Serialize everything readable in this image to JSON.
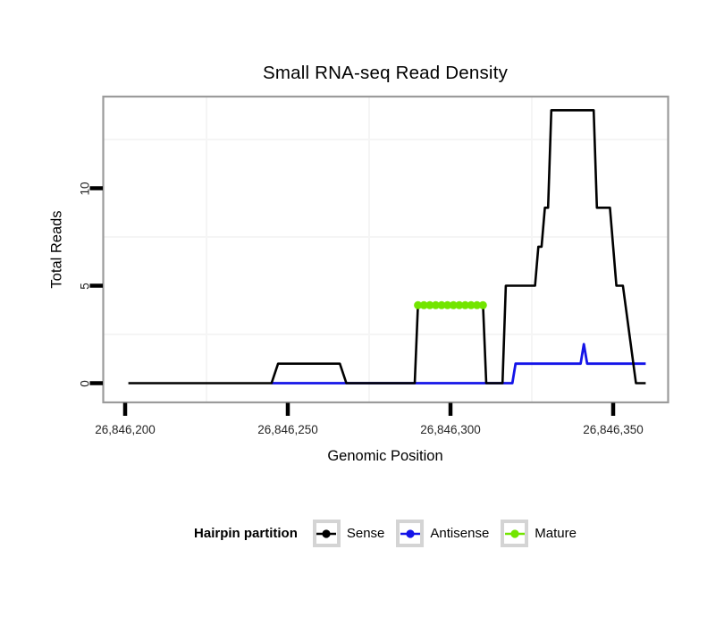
{
  "title": "Small RNA-seq Read Density",
  "axes": {
    "x": {
      "label": "Genomic Position",
      "ticks": [
        {
          "value": 26846200,
          "label": "26,846,200"
        },
        {
          "value": 26846250,
          "label": "26,846,250"
        },
        {
          "value": 26846300,
          "label": "26,846,300"
        },
        {
          "value": 26846350,
          "label": "26,846,350"
        }
      ]
    },
    "y": {
      "label": "Total Reads",
      "ticks": [
        {
          "value": 0,
          "label": "0"
        },
        {
          "value": 5,
          "label": "5"
        },
        {
          "value": 10,
          "label": "10"
        }
      ]
    }
  },
  "legend": {
    "title": "Hairpin partition",
    "items": [
      {
        "label": "Sense",
        "color": "#000000"
      },
      {
        "label": "Antisense",
        "color": "#1414E8"
      },
      {
        "label": "Mature",
        "color": "#72E500"
      }
    ]
  },
  "colors": {
    "panel_border": "#9B9B9B",
    "minor_grid": "#F5F5F5",
    "tick": "#000000"
  },
  "chart_data": {
    "type": "line",
    "title": "Small RNA-seq Read Density",
    "xlabel": "Genomic Position",
    "ylabel": "Total Reads",
    "xlim": [
      26846193,
      26846367
    ],
    "ylim": [
      0,
      14.7
    ],
    "x_ticks": [
      26846200,
      26846250,
      26846300,
      26846350
    ],
    "x_minor": [
      26846225,
      26846275,
      26846325
    ],
    "y_ticks": [
      0,
      5,
      10
    ],
    "y_minor": [
      2.5,
      7.5,
      12.5
    ],
    "grid": "very light minor gridlines only",
    "legend_position": "bottom",
    "series": [
      {
        "name": "Sense",
        "color": "#000000",
        "style": "line",
        "width": 2.6,
        "z": 2,
        "points": [
          [
            26846201,
            0
          ],
          [
            26846245,
            0
          ],
          [
            26846247,
            1
          ],
          [
            26846266,
            1
          ],
          [
            26846268,
            0
          ],
          [
            26846289,
            0
          ],
          [
            26846290,
            4
          ],
          [
            26846310,
            4
          ],
          [
            26846311,
            0
          ],
          [
            26846316,
            0
          ],
          [
            26846317,
            5
          ],
          [
            26846326,
            5
          ],
          [
            26846327,
            7
          ],
          [
            26846328,
            7
          ],
          [
            26846329,
            9
          ],
          [
            26846330,
            9
          ],
          [
            26846331,
            14
          ],
          [
            26846344,
            14
          ],
          [
            26846345,
            9
          ],
          [
            26846349,
            9
          ],
          [
            26846351,
            5
          ],
          [
            26846353,
            5
          ],
          [
            26846357,
            0
          ],
          [
            26846360,
            0
          ]
        ]
      },
      {
        "name": "Antisense",
        "color": "#1414E8",
        "style": "line",
        "width": 2.8,
        "z": 1,
        "points": [
          [
            26846245,
            0
          ],
          [
            26846319,
            0
          ],
          [
            26846320,
            1
          ],
          [
            26846340,
            1
          ],
          [
            26846341,
            2
          ],
          [
            26846342,
            1
          ],
          [
            26846360,
            1
          ]
        ]
      },
      {
        "name": "Mature",
        "color": "#72E500",
        "style": "dot-line",
        "width": 9,
        "z": 3,
        "points": [
          [
            26846290,
            4
          ],
          [
            26846311,
            4
          ]
        ]
      }
    ]
  }
}
